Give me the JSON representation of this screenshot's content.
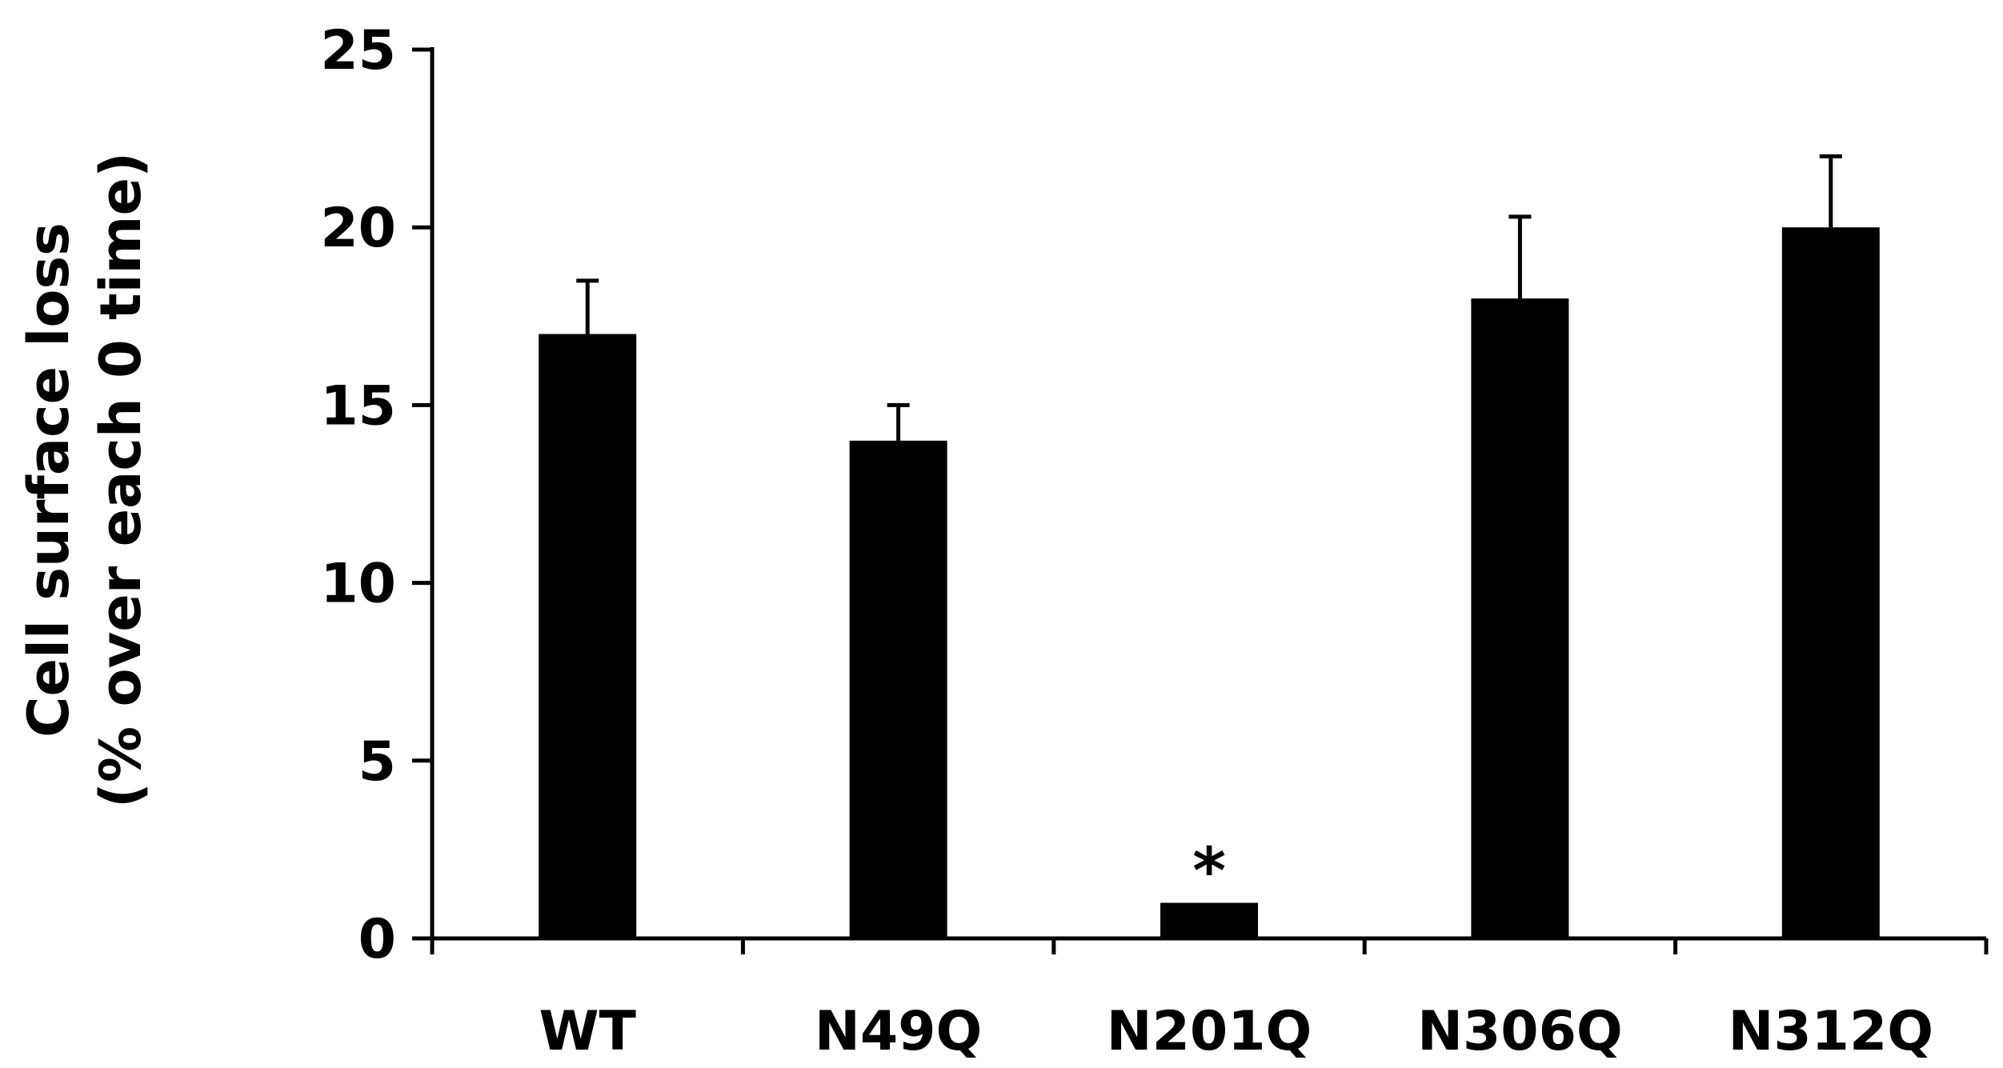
{
  "chart_data": {
    "type": "bar",
    "categories": [
      "WT",
      "N49Q",
      "N201Q",
      "N306Q",
      "N312Q"
    ],
    "values": [
      17,
      14,
      1,
      18,
      20
    ],
    "errors": [
      1.5,
      1.0,
      0.0,
      2.3,
      2.0
    ],
    "annotations": [
      "",
      "",
      "*",
      "",
      ""
    ],
    "ylabel_line1": "Cell surface loss",
    "ylabel_line2": "(% over each 0 time)",
    "ylim": [
      0,
      25
    ],
    "yticks": [
      0,
      5,
      10,
      15,
      20,
      25
    ],
    "grid": false,
    "colors": {
      "bar": "#000000",
      "axis": "#000000"
    }
  }
}
